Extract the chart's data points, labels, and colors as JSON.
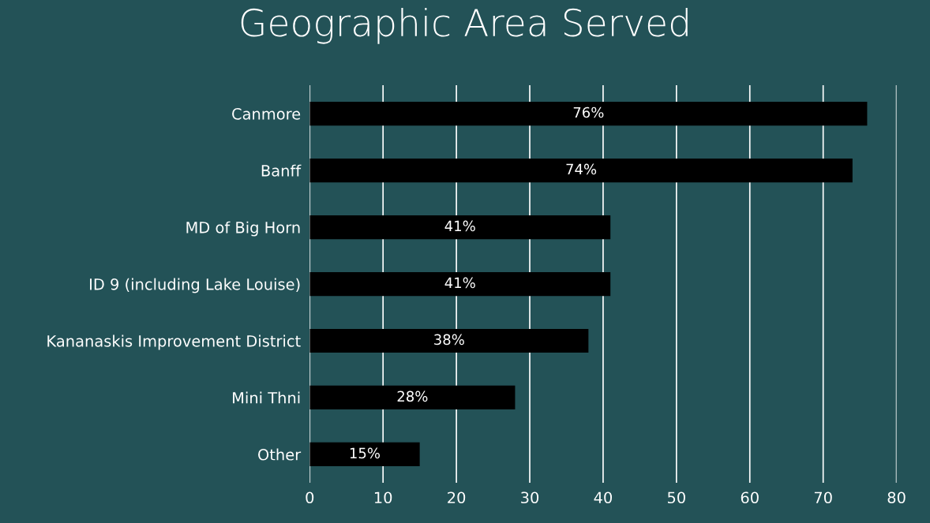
{
  "chart_data": {
    "type": "bar",
    "orientation": "horizontal",
    "title": "Geographic Area Served",
    "categories": [
      "Canmore",
      "Banff",
      "MD of Big Horn",
      "ID 9 (including Lake Louise)",
      "Kananaskis Improvement District",
      "Mini Thni",
      "Other"
    ],
    "values": [
      76,
      74,
      41,
      41,
      38,
      28,
      15
    ],
    "value_labels": [
      "76%",
      "74%",
      "41%",
      "41%",
      "38%",
      "28%",
      "15%"
    ],
    "color": "#000000",
    "xlim": [
      0,
      80
    ],
    "xticks": [
      0,
      10,
      20,
      30,
      40,
      50,
      60,
      70,
      80
    ],
    "grid": "x",
    "legend": false
  }
}
